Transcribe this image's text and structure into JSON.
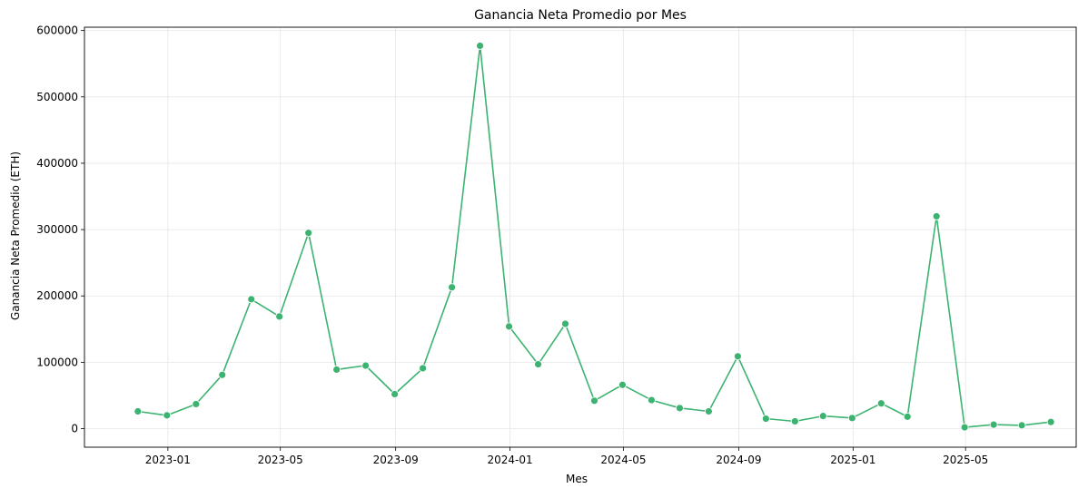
{
  "chart_data": {
    "type": "line",
    "title": "Ganancia Neta Promedio por Mes",
    "xlabel": "Mes",
    "ylabel": "Ganancia Neta Promedio (ETH)",
    "ylim": [
      -28000,
      605000
    ],
    "xlim": [
      "2022-10-04",
      "2025-08-27"
    ],
    "grid": true,
    "legend": "none",
    "color": "#3cb371",
    "x_ticks": [
      "2023-01",
      "2023-05",
      "2023-09",
      "2024-01",
      "2024-05",
      "2024-09",
      "2025-01",
      "2025-05"
    ],
    "y_ticks": [
      0,
      100000,
      200000,
      300000,
      400000,
      500000,
      600000
    ],
    "series": [
      {
        "x": [
          "2022-11-30",
          "2022-12-31",
          "2023-01-31",
          "2023-02-28",
          "2023-03-31",
          "2023-04-30",
          "2023-05-31",
          "2023-06-30",
          "2023-07-31",
          "2023-08-31",
          "2023-09-30",
          "2023-10-31",
          "2023-11-30",
          "2023-12-31",
          "2024-01-31",
          "2024-02-29",
          "2024-03-31",
          "2024-04-30",
          "2024-05-31",
          "2024-06-30",
          "2024-07-31",
          "2024-08-31",
          "2024-09-30",
          "2024-10-31",
          "2024-11-30",
          "2024-12-31",
          "2025-01-31",
          "2025-02-28",
          "2025-03-31",
          "2025-04-30",
          "2025-05-31",
          "2025-06-30",
          "2025-07-31"
        ],
        "values": [
          26000,
          20000,
          37000,
          81000,
          195000,
          169000,
          295000,
          89000,
          95000,
          52000,
          91000,
          213000,
          577000,
          154000,
          97000,
          158000,
          42000,
          66000,
          43000,
          31000,
          26000,
          109000,
          15000,
          11000,
          19000,
          16000,
          38000,
          18000,
          320000,
          2000,
          6000,
          5000,
          10000
        ]
      }
    ]
  }
}
